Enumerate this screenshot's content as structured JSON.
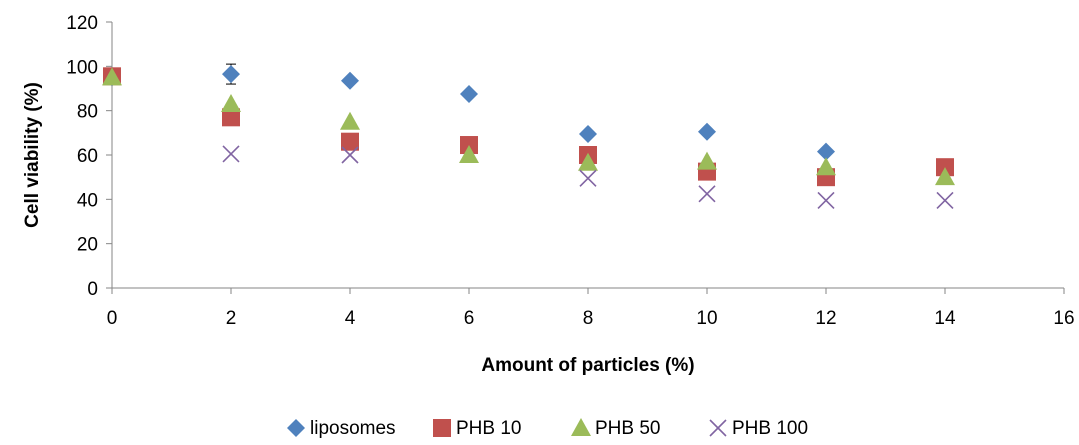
{
  "chart_data": {
    "type": "scatter",
    "title": "",
    "xlabel": "Amount of particles (%)",
    "ylabel": "Cell viability (%)",
    "xlim": [
      0,
      16
    ],
    "ylim": [
      0,
      120
    ],
    "xticks": [
      0,
      2,
      4,
      6,
      8,
      10,
      12,
      14,
      16
    ],
    "yticks": [
      0,
      20,
      40,
      60,
      80,
      100,
      120
    ],
    "grid": false,
    "legend_position": "bottom",
    "series": [
      {
        "name": "liposomes",
        "marker": "diamond",
        "color": "#4F81BD",
        "points": [
          [
            0,
            95
          ],
          [
            2,
            96.5
          ],
          [
            4,
            93.5
          ],
          [
            6,
            87.5
          ],
          [
            8,
            69.5
          ],
          [
            10,
            70.5
          ],
          [
            12,
            61.5
          ]
        ],
        "error": [
          0,
          4.5,
          0,
          0,
          0,
          0,
          0
        ]
      },
      {
        "name": "PHB 10",
        "marker": "square",
        "color": "#C0504D",
        "points": [
          [
            0,
            95.5
          ],
          [
            2,
            77
          ],
          [
            4,
            66
          ],
          [
            6,
            64.5
          ],
          [
            8,
            60
          ],
          [
            10,
            52.5
          ],
          [
            12,
            50
          ],
          [
            14,
            54.5
          ]
        ]
      },
      {
        "name": "PHB 50",
        "marker": "triangle",
        "color": "#9BBB59",
        "points": [
          [
            0,
            95
          ],
          [
            2,
            83
          ],
          [
            4,
            75
          ],
          [
            6,
            60
          ],
          [
            8,
            56.5
          ],
          [
            10,
            57
          ],
          [
            12,
            54.5
          ],
          [
            14,
            50
          ]
        ]
      },
      {
        "name": "PHB 100",
        "marker": "x",
        "color": "#8064A2",
        "points": [
          [
            2,
            60.5
          ],
          [
            4,
            60
          ],
          [
            8,
            49.5
          ],
          [
            10,
            42.5
          ],
          [
            12,
            39.5
          ],
          [
            14,
            39.5
          ]
        ]
      }
    ]
  }
}
